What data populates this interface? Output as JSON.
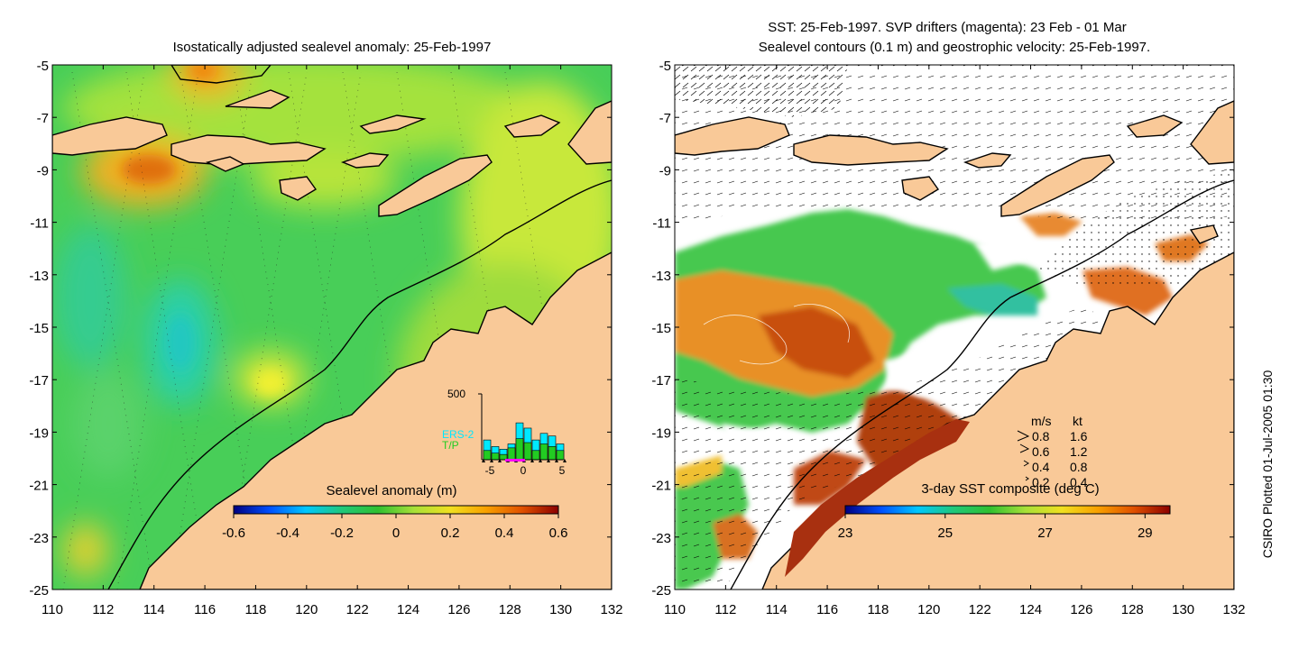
{
  "credit": "CSIRO Plotted 01-Jul-2005 01:30",
  "colors": {
    "land": "#f9c998",
    "coast": "#000000",
    "ocean_base_left": "#4bd05a",
    "drifter": "#ff00ff",
    "ers2": "#00e8ff",
    "tp": "#22cc22",
    "background": "#ffffff"
  },
  "left_map": {
    "title": "Isostatically adjusted sealevel anomaly: 25-Feb-1997",
    "colorbar": {
      "title": "Sealevel anomaly (m)",
      "ticks": [
        "-0.6",
        "-0.4",
        "-0.2",
        "0",
        "0.2",
        "0.4",
        "0.6"
      ],
      "range": [
        -0.6,
        0.6
      ],
      "colormap": [
        "#000080",
        "#0050ff",
        "#00c8ff",
        "#20c87a",
        "#30c030",
        "#a8e038",
        "#f0e020",
        "#f8a000",
        "#e05000",
        "#8b0000"
      ]
    },
    "inset": {
      "ytick": "500",
      "legend": [
        "ERS-2",
        "T/P"
      ],
      "xticks": [
        "-5",
        "0",
        "5"
      ],
      "ers2_bars": [
        150,
        100,
        80,
        120,
        280,
        240,
        150,
        200,
        180,
        120
      ],
      "tp_bars": [
        70,
        50,
        40,
        90,
        160,
        130,
        70,
        120,
        100,
        70
      ]
    }
  },
  "right_map": {
    "title_line1": "SST: 25-Feb-1997. SVP drifters (magenta): 23 Feb - 01 Mar",
    "title_line2": "Sealevel contours (0.1 m) and geostrophic velocity: 25-Feb-1997.",
    "colorbar": {
      "title": "3-day SST composite (deg C)",
      "ticks": [
        "23",
        "25",
        "27",
        "29"
      ],
      "range": [
        23,
        29.5
      ],
      "colormap": [
        "#000080",
        "#0050ff",
        "#00c8ff",
        "#20c87a",
        "#30c030",
        "#a8e038",
        "#f0e020",
        "#f8a000",
        "#e05000",
        "#8b0000"
      ]
    },
    "velocity_key": {
      "header_ms": "m/s",
      "header_kt": "kt",
      "rows": [
        {
          "ms": "0.8",
          "kt": "1.6"
        },
        {
          "ms": "0.6",
          "kt": "1.2"
        },
        {
          "ms": "0.4",
          "kt": "0.8"
        },
        {
          "ms": "0.2",
          "kt": "0.4"
        }
      ]
    }
  },
  "axes": {
    "lon_ticks": [
      "110",
      "112",
      "114",
      "116",
      "118",
      "120",
      "122",
      "124",
      "126",
      "128",
      "130",
      "132"
    ],
    "lat_ticks": [
      "-5",
      "-7",
      "-9",
      "-11",
      "-13",
      "-15",
      "-17",
      "-19",
      "-21",
      "-23",
      "-25"
    ],
    "lon_range": [
      110,
      132
    ],
    "lat_range": [
      -25,
      -5
    ]
  }
}
